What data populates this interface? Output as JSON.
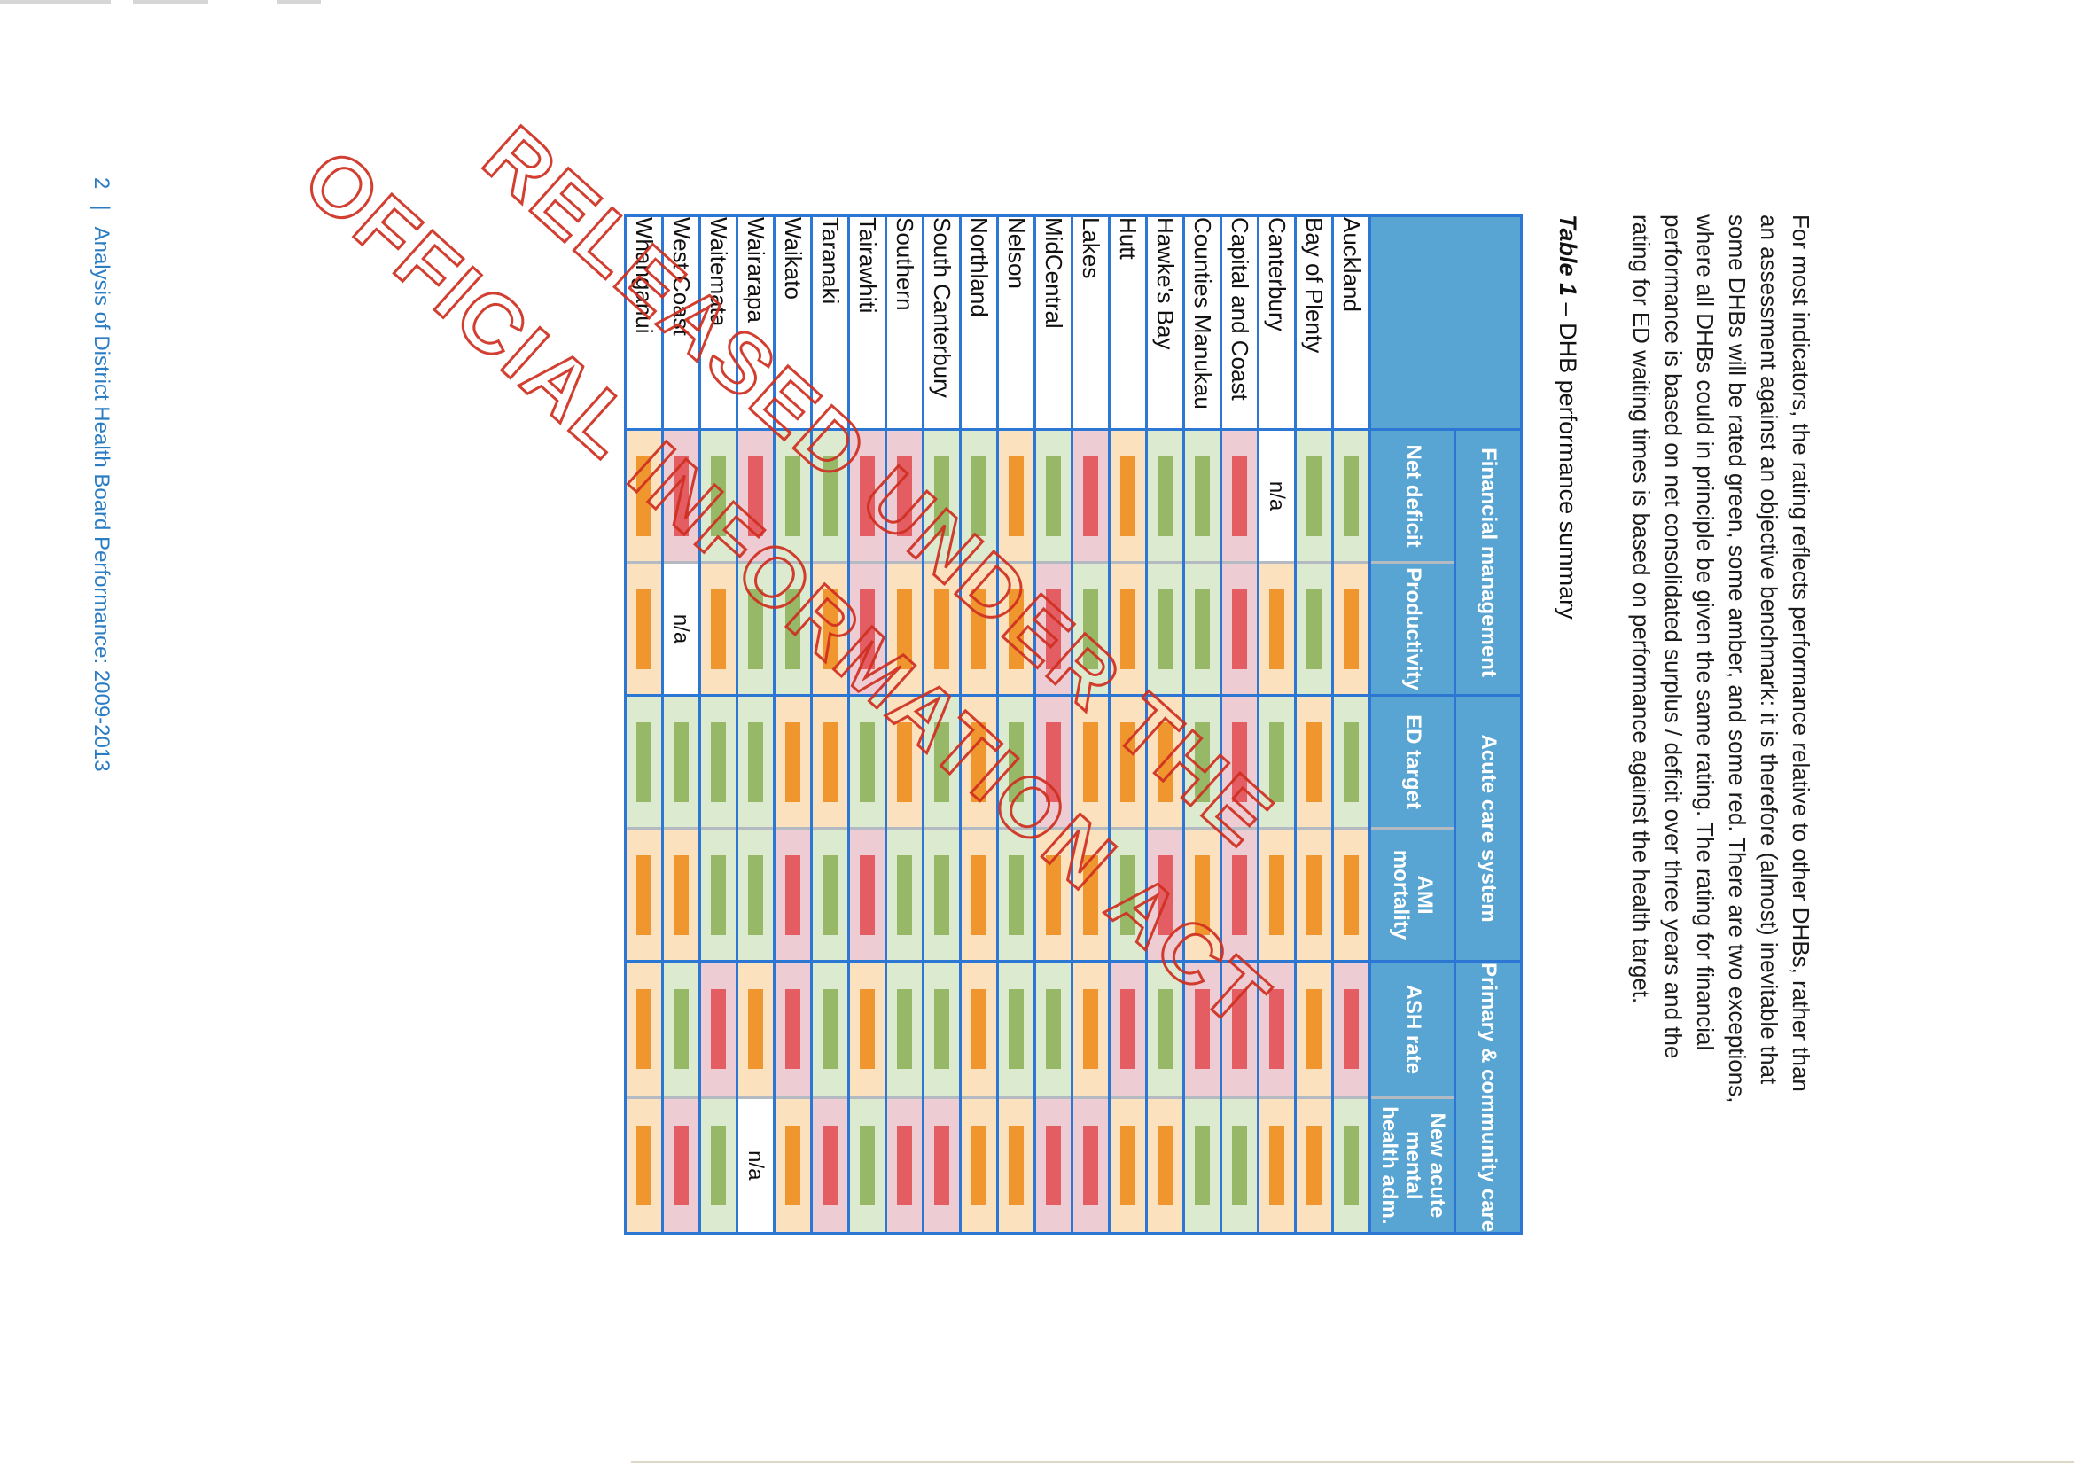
{
  "paragraph": {
    "lines": [
      "For most indicators, the rating reflects performance relative to other DHBs, rather than",
      "an assessment against an objective benchmark: it is therefore (almost) inevitable that",
      "some DHBs will be rated green, some amber, and some red. There are two exceptions,",
      "where all DHBs could in principle be given the same rating. The rating for financial",
      "performance is based on net consolidated surplus / deficit over three years and the",
      "rating for ED waiting times is based on performance against the health target."
    ]
  },
  "table_title": {
    "prefix": "Table 1",
    "rest": " – DHB performance summary"
  },
  "watermark": {
    "line1": "RELEASED UNDER THE",
    "line2": "OFFICIAL INFORMATION ACT"
  },
  "footer": {
    "page_number": "2",
    "divider": "|",
    "text": "Analysis of District Health Board Performance: 2009-2013"
  },
  "table": {
    "na_label": "n/a",
    "groups": [
      {
        "label": "Financial management",
        "span": 2
      },
      {
        "label": "Acute care system",
        "span": 2
      },
      {
        "label": "Primary & community care",
        "span": 2
      }
    ],
    "columns": [
      "Net deficit",
      "Productivity",
      "ED target",
      "AMI mortality",
      "ASH rate",
      "New acute mental health adm."
    ],
    "colors": {
      "header_bg": "#58a5d4",
      "border_blue": "#2c77d4",
      "green_bg": "#dcead0",
      "green_bar": "#97b867",
      "amber_bg": "#fbe1bd",
      "amber_bar": "#f0962e",
      "red_bg": "#edccd3",
      "red_bar": "#e45d63",
      "na_bg": "#ffffff",
      "watermark_red": "#cf2f20",
      "footer_blue": "#2a7cc3"
    },
    "rows": [
      {
        "dhb": "Auckland",
        "ratings": [
          "green",
          "amber",
          "green",
          "amber",
          "red",
          "green"
        ]
      },
      {
        "dhb": "Bay of Plenty",
        "ratings": [
          "green",
          "green",
          "amber",
          "amber",
          "amber",
          "amber"
        ]
      },
      {
        "dhb": "Canterbury",
        "ratings": [
          "na",
          "amber",
          "green",
          "amber",
          "red",
          "amber"
        ]
      },
      {
        "dhb": "Capital and Coast",
        "ratings": [
          "red",
          "red",
          "red",
          "red",
          "red",
          "green"
        ]
      },
      {
        "dhb": "Counties Manukau",
        "ratings": [
          "green",
          "green",
          "green",
          "amber",
          "red",
          "green"
        ]
      },
      {
        "dhb": "Hawke's Bay",
        "ratings": [
          "green",
          "green",
          "amber",
          "red",
          "green",
          "amber"
        ]
      },
      {
        "dhb": "Hutt",
        "ratings": [
          "amber",
          "amber",
          "amber",
          "green",
          "red",
          "amber"
        ]
      },
      {
        "dhb": "Lakes",
        "ratings": [
          "red",
          "green",
          "amber",
          "amber",
          "amber",
          "red"
        ]
      },
      {
        "dhb": "MidCentral",
        "ratings": [
          "green",
          "red",
          "red",
          "amber",
          "green",
          "red"
        ]
      },
      {
        "dhb": "Nelson",
        "ratings": [
          "amber",
          "amber",
          "green",
          "green",
          "green",
          "amber"
        ]
      },
      {
        "dhb": "Northland",
        "ratings": [
          "green",
          "amber",
          "amber",
          "amber",
          "amber",
          "amber"
        ]
      },
      {
        "dhb": "South Canterbury",
        "ratings": [
          "green",
          "amber",
          "green",
          "green",
          "green",
          "red"
        ]
      },
      {
        "dhb": "Southern",
        "ratings": [
          "red",
          "amber",
          "amber",
          "green",
          "green",
          "red"
        ]
      },
      {
        "dhb": "Tairawhiti",
        "ratings": [
          "red",
          "red",
          "green",
          "red",
          "amber",
          "green"
        ]
      },
      {
        "dhb": "Taranaki",
        "ratings": [
          "green",
          "amber",
          "amber",
          "green",
          "green",
          "red"
        ]
      },
      {
        "dhb": "Waikato",
        "ratings": [
          "green",
          "green",
          "amber",
          "red",
          "red",
          "amber"
        ]
      },
      {
        "dhb": "Wairarapa",
        "ratings": [
          "red",
          "green",
          "green",
          "green",
          "amber",
          "na"
        ]
      },
      {
        "dhb": "Waitemata",
        "ratings": [
          "green",
          "amber",
          "green",
          "green",
          "red",
          "green"
        ]
      },
      {
        "dhb": "West Coast",
        "ratings": [
          "red",
          "na",
          "green",
          "amber",
          "green",
          "red"
        ]
      },
      {
        "dhb": "Whanganui",
        "ratings": [
          "amber",
          "amber",
          "green",
          "amber",
          "amber",
          "amber"
        ]
      }
    ]
  }
}
